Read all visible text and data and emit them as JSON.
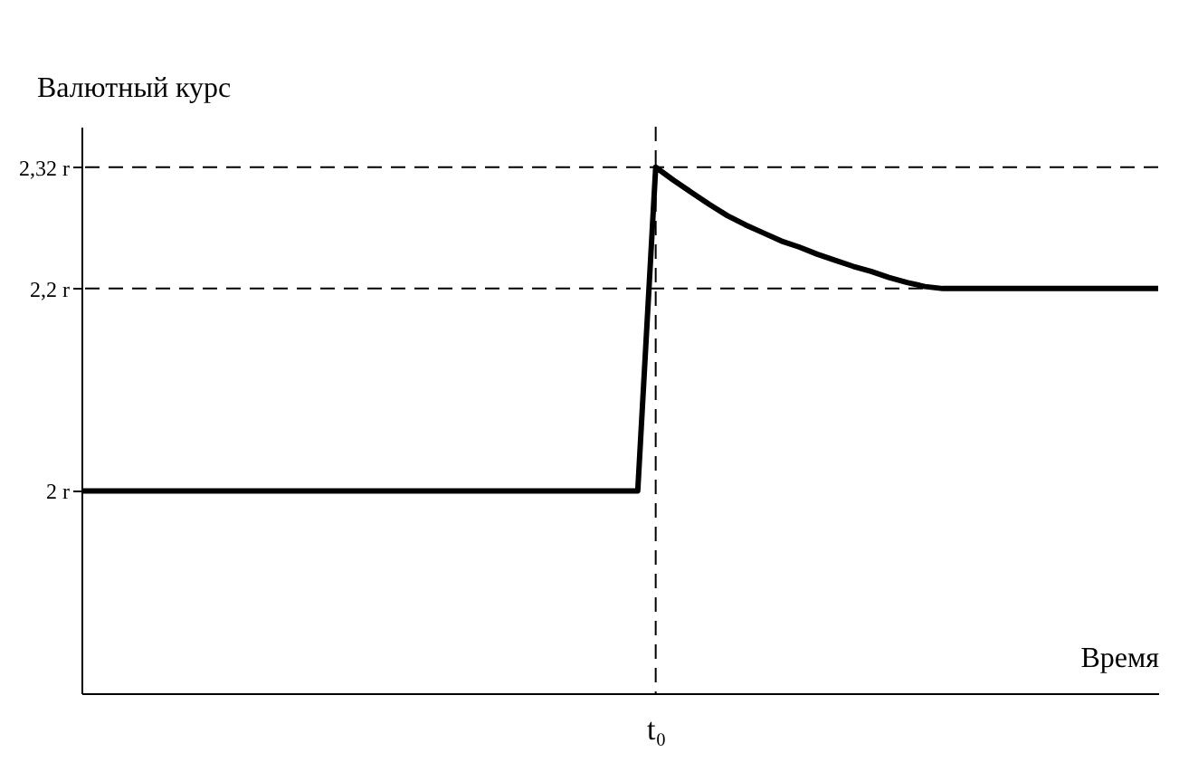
{
  "chart_data": {
    "type": "line",
    "xlabel": "Время",
    "ylabel": "Валютный курс",
    "categories": [
      null,
      null,
      null,
      null,
      null,
      null,
      null,
      null,
      null,
      null,
      null,
      null,
      null,
      null,
      null,
      null,
      null,
      null,
      null,
      null,
      null,
      null,
      null,
      null,
      null,
      null,
      null,
      null,
      null,
      null,
      null,
      null,
      "t₀",
      null,
      null,
      null,
      null,
      null,
      null,
      null,
      null,
      null,
      null,
      null,
      null,
      null,
      null,
      null,
      null,
      null,
      null,
      null,
      null,
      null,
      null,
      null,
      null,
      null,
      null,
      null,
      null
    ],
    "ylim": [
      1.8,
      2.36
    ],
    "yticks": [
      {
        "value": 2,
        "label": "2 r"
      },
      {
        "value": 2.2,
        "label": "2,2 r"
      },
      {
        "value": 2.32,
        "label": "2,32 r"
      }
    ],
    "series": [
      {
        "color": "#000000",
        "values": [
          2,
          2,
          2,
          2,
          2,
          2,
          2,
          2,
          2,
          2,
          2,
          2,
          2,
          2,
          2,
          2,
          2,
          2,
          2,
          2,
          2,
          2,
          2,
          2,
          2,
          2,
          2,
          2,
          2,
          2,
          2,
          2,
          2.32,
          2.307,
          2.295,
          2.283,
          2.272,
          2.263,
          2.255,
          2.247,
          2.241,
          2.234,
          2.228,
          2.222,
          2.217,
          2.211,
          2.206,
          2.202,
          2.2,
          2.2,
          2.2,
          2.2,
          2.2,
          2.2,
          2.2,
          2.2,
          2.2,
          2.2,
          2.2,
          2.2,
          2.2
        ]
      }
    ],
    "ref_lines": [
      {
        "axis": "y",
        "value": 2.32,
        "line_style": "dashed",
        "color": "#000000"
      },
      {
        "axis": "y",
        "value": 2.2,
        "line_style": "dashed",
        "color": "#000000"
      },
      {
        "axis": "x",
        "value": "t₀",
        "line_style": "dashed",
        "color": "#000000"
      }
    ],
    "grid": false,
    "marker": "none",
    "line_style": "solid"
  }
}
